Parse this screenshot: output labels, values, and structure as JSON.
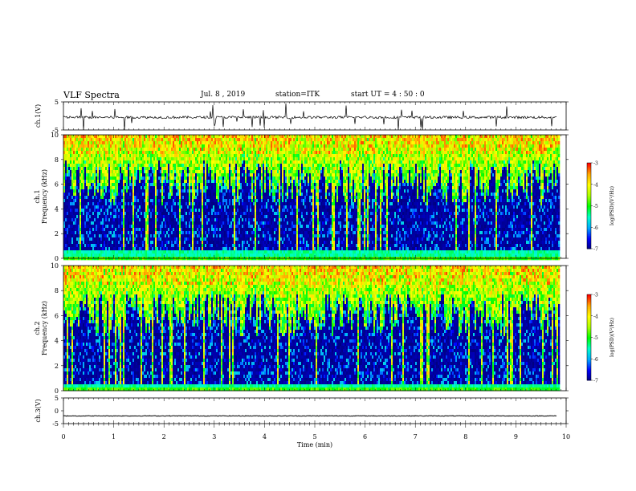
{
  "header": {
    "title": "VLF Spectra",
    "date": "Jul. 8 , 2019",
    "station": "station=ITK",
    "start": "start UT = 4 : 50 : 0"
  },
  "colors": {
    "colormap": [
      "#000080",
      "#0000ff",
      "#00aaff",
      "#00ffcc",
      "#00ff00",
      "#aaff00",
      "#ffff00",
      "#ffaa00",
      "#ff0000",
      "#ffffff"
    ]
  },
  "chart_data": [
    {
      "type": "line",
      "panel": "ch1-waveform",
      "ylabel": "ch.1(V)",
      "ylim": [
        -5,
        5
      ],
      "yticks": [
        "5",
        "-5"
      ],
      "series": [
        {
          "values_note_baseline": -0.5
        }
      ]
    },
    {
      "type": "heatmap",
      "panel": "ch1-spectrogram",
      "ylabel_line1": "ch.1",
      "ylabel_line2": "Frequency (kHz)",
      "ylim": [
        0,
        10
      ],
      "yticks": [
        "0",
        "2",
        "4",
        "6",
        "8",
        "10"
      ],
      "colorbar": {
        "label": "log(PSD)(V²/Hz)",
        "range": [
          -7,
          -3
        ],
        "ticks": [
          "-3",
          "-4",
          "-5",
          "-6",
          "-7"
        ]
      }
    },
    {
      "type": "heatmap",
      "panel": "ch2-spectrogram",
      "ylabel_line1": "ch.2",
      "ylabel_line2": "Frequency (kHz)",
      "ylim": [
        0,
        10
      ],
      "yticks": [
        "0",
        "2",
        "4",
        "6",
        "8",
        "10"
      ],
      "colorbar": {
        "label": "log(PSD)(V²/Hz)",
        "range": [
          -7,
          -3
        ],
        "ticks": [
          "-3",
          "-4",
          "-5",
          "-6",
          "-7"
        ]
      }
    },
    {
      "type": "line",
      "panel": "ch3-waveform",
      "ylabel": "ch.3(V)",
      "ylim": [
        -5,
        5
      ],
      "yticks": [
        "5",
        "0",
        "-5"
      ],
      "series": [
        {
          "values_note_baseline": -2
        }
      ]
    }
  ],
  "xaxis": {
    "label": "Time (min)",
    "xlim": [
      0,
      10
    ],
    "ticks": [
      "0",
      "1",
      "2",
      "3",
      "4",
      "5",
      "6",
      "7",
      "8",
      "9",
      "10"
    ]
  }
}
